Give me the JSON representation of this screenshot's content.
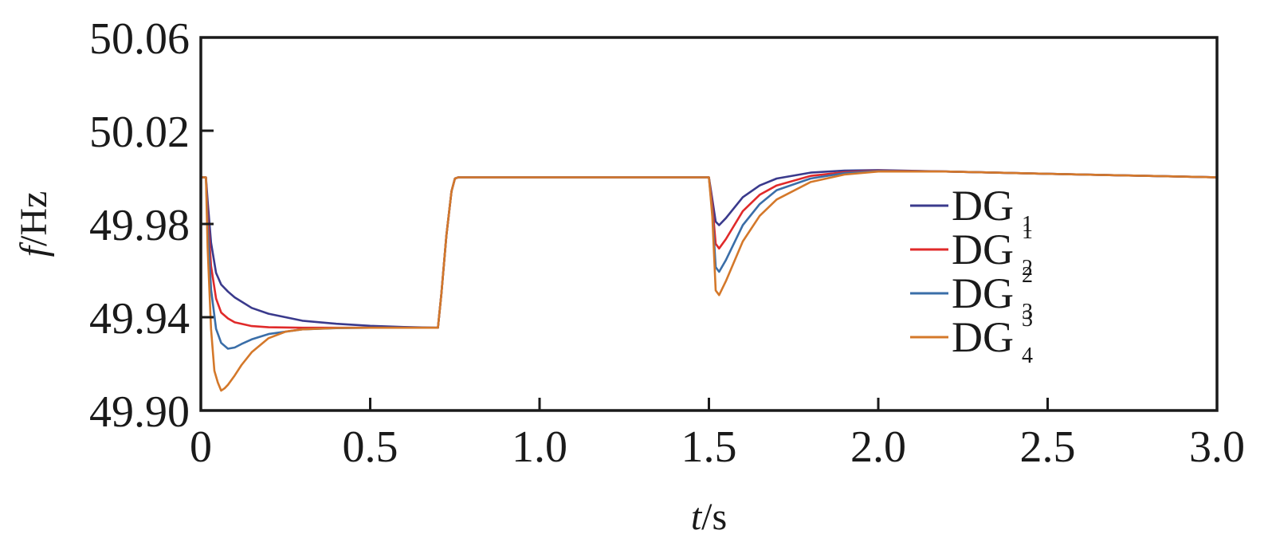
{
  "chart_data": {
    "type": "line",
    "xlabel": {
      "italic": "t",
      "rest": "/s"
    },
    "ylabel": {
      "italic": "f",
      "rest": "/Hz"
    },
    "xlim": [
      0,
      3.0
    ],
    "ylim": [
      49.9,
      50.06
    ],
    "x_ticks": [
      "0",
      "0.5",
      "1.0",
      "1.5",
      "2.0",
      "2.5",
      "3.0"
    ],
    "x_tick_values": [
      0,
      0.5,
      1.0,
      1.5,
      2.0,
      2.5,
      3.0
    ],
    "y_ticks": [
      "49.90",
      "49.94",
      "49.98",
      "50.02",
      "50.06"
    ],
    "y_tick_values": [
      49.9,
      49.94,
      49.98,
      50.02,
      50.06
    ],
    "grid": false,
    "legend_position": "right-center",
    "legend_entries": [
      {
        "base": "DG",
        "sup": "",
        "sub": "1"
      },
      {
        "base": "DG",
        "sup": "1",
        "sub": "2"
      },
      {
        "base": "DG",
        "sup": "2",
        "sub": "3"
      },
      {
        "base": "DG",
        "sup": "3",
        "sub": "4"
      }
    ],
    "series": [
      {
        "name": "DG1",
        "color": "#3a3a8c",
        "x": [
          0,
          0.01,
          0.015,
          0.02,
          0.03,
          0.045,
          0.06,
          0.08,
          0.1,
          0.15,
          0.2,
          0.3,
          0.4,
          0.5,
          0.6,
          0.69,
          0.7,
          0.71,
          0.725,
          0.74,
          0.75,
          0.76,
          0.8,
          1.0,
          1.2,
          1.4,
          1.5,
          1.51,
          1.52,
          1.53,
          1.55,
          1.6,
          1.65,
          1.7,
          1.8,
          1.9,
          2.0,
          2.2,
          2.5,
          2.8,
          3.0
        ],
        "y": [
          50.0,
          50.0,
          50.0,
          49.99,
          49.972,
          49.959,
          49.954,
          49.951,
          49.9485,
          49.944,
          49.9415,
          49.9385,
          49.9372,
          49.9363,
          49.9358,
          49.9355,
          49.9355,
          49.95,
          49.975,
          49.994,
          49.9995,
          50.0,
          50.0,
          50.0,
          50.0,
          50.0,
          50.0,
          49.9905,
          49.981,
          49.9795,
          49.9825,
          49.9915,
          49.9965,
          49.9995,
          50.002,
          50.0029,
          50.0031,
          50.0025,
          50.0015,
          50.0006,
          50.0
        ]
      },
      {
        "name": "DG2",
        "color": "#e02a2a",
        "x": [
          0,
          0.01,
          0.015,
          0.02,
          0.03,
          0.045,
          0.06,
          0.08,
          0.1,
          0.15,
          0.2,
          0.3,
          0.4,
          0.5,
          0.6,
          0.69,
          0.7,
          0.71,
          0.725,
          0.74,
          0.75,
          0.76,
          0.8,
          1.0,
          1.2,
          1.4,
          1.5,
          1.51,
          1.52,
          1.53,
          1.55,
          1.6,
          1.65,
          1.7,
          1.8,
          1.9,
          2.0,
          2.2,
          2.5,
          2.8,
          3.0
        ],
        "y": [
          50.0,
          50.0,
          50.0,
          49.985,
          49.962,
          49.948,
          49.942,
          49.9395,
          49.9378,
          49.9362,
          49.9357,
          49.9355,
          49.9355,
          49.9355,
          49.9355,
          49.9355,
          49.9355,
          49.95,
          49.975,
          49.994,
          49.9995,
          50.0,
          50.0,
          50.0,
          50.0,
          50.0,
          50.0,
          49.988,
          49.9715,
          49.9695,
          49.9735,
          49.9855,
          49.9925,
          49.9965,
          50.0006,
          50.0022,
          50.0029,
          50.0025,
          50.0015,
          50.0006,
          50.0
        ]
      },
      {
        "name": "DG3",
        "color": "#3a6ea8",
        "x": [
          0,
          0.01,
          0.015,
          0.02,
          0.03,
          0.045,
          0.06,
          0.08,
          0.1,
          0.12,
          0.15,
          0.2,
          0.3,
          0.4,
          0.5,
          0.6,
          0.69,
          0.7,
          0.71,
          0.725,
          0.74,
          0.75,
          0.76,
          0.8,
          1.0,
          1.2,
          1.4,
          1.5,
          1.51,
          1.52,
          1.53,
          1.55,
          1.6,
          1.65,
          1.7,
          1.8,
          1.9,
          2.0,
          2.2,
          2.5,
          2.8,
          3.0
        ],
        "y": [
          50.0,
          50.0,
          50.0,
          49.98,
          49.952,
          49.935,
          49.929,
          49.9265,
          49.927,
          49.9285,
          49.9305,
          49.9328,
          49.9348,
          49.9353,
          49.9355,
          49.9355,
          49.9355,
          49.9355,
          49.95,
          49.975,
          49.994,
          49.9995,
          50.0,
          50.0,
          50.0,
          50.0,
          50.0,
          50.0,
          49.985,
          49.9615,
          49.9595,
          49.9645,
          49.9795,
          49.9885,
          49.9945,
          49.9995,
          50.0018,
          50.0027,
          50.0025,
          50.0015,
          50.0006,
          50.0
        ]
      },
      {
        "name": "DG4",
        "color": "#d4782a",
        "x": [
          0,
          0.01,
          0.015,
          0.02,
          0.03,
          0.04,
          0.05,
          0.06,
          0.07,
          0.08,
          0.1,
          0.12,
          0.15,
          0.2,
          0.25,
          0.3,
          0.4,
          0.5,
          0.6,
          0.69,
          0.7,
          0.71,
          0.725,
          0.74,
          0.75,
          0.76,
          0.8,
          1.0,
          1.2,
          1.4,
          1.5,
          1.51,
          1.52,
          1.53,
          1.55,
          1.6,
          1.65,
          1.7,
          1.8,
          1.9,
          2.0,
          2.2,
          2.5,
          2.8,
          3.0
        ],
        "y": [
          50.0,
          50.0,
          50.0,
          49.97,
          49.935,
          49.917,
          49.912,
          49.9085,
          49.9095,
          49.911,
          49.915,
          49.9195,
          49.925,
          49.931,
          49.9338,
          49.9348,
          49.9354,
          49.9355,
          49.9355,
          49.9355,
          49.9355,
          49.95,
          49.975,
          49.994,
          49.9995,
          50.0,
          50.0,
          50.0,
          50.0,
          50.0,
          50.0,
          49.983,
          49.9515,
          49.9495,
          49.9555,
          49.9725,
          49.9835,
          49.9905,
          49.998,
          50.0012,
          50.0025,
          50.0025,
          50.0015,
          50.0006,
          50.0
        ]
      }
    ]
  }
}
